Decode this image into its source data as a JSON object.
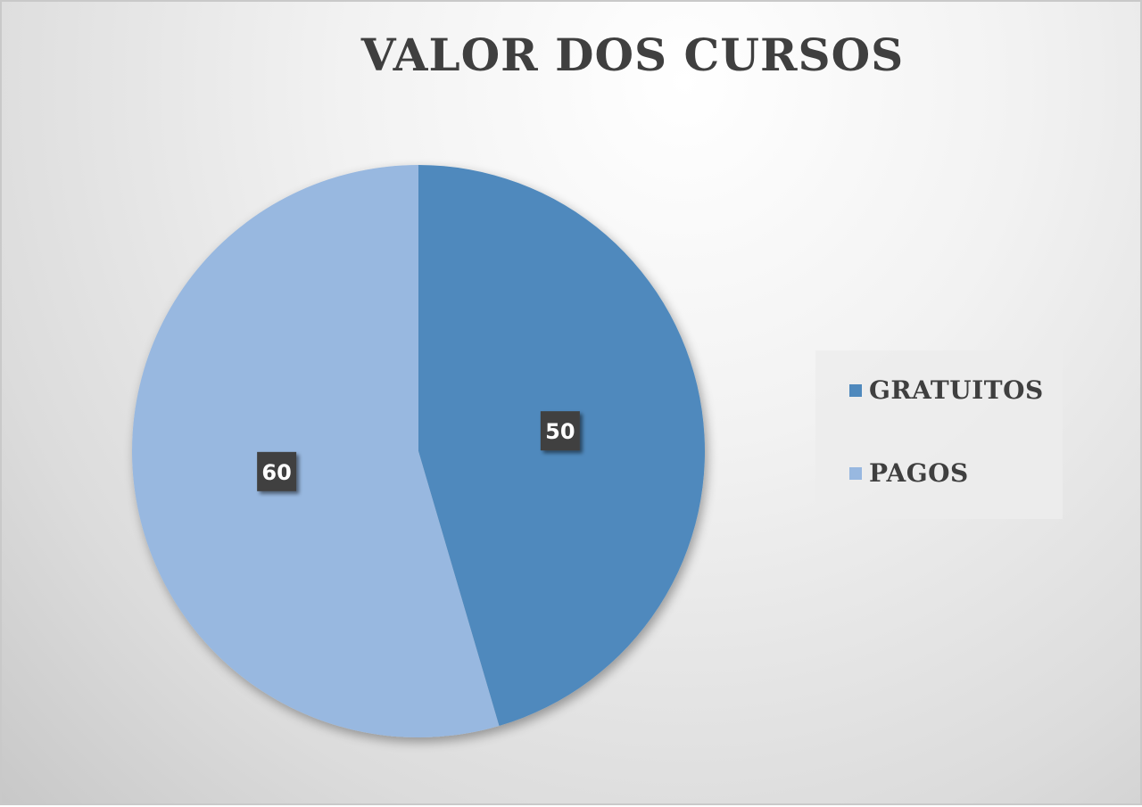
{
  "chart_data": {
    "type": "pie",
    "title": "VALOR DOS CURSOS",
    "categories": [
      "GRATUITOS",
      "PAGOS"
    ],
    "values": [
      50,
      60
    ],
    "colors": [
      "#4f89bd",
      "#98b8e0"
    ],
    "legend": "right",
    "data_labels": [
      "50",
      "60"
    ],
    "start_angle": "12 o'clock",
    "direction": "clockwise"
  }
}
